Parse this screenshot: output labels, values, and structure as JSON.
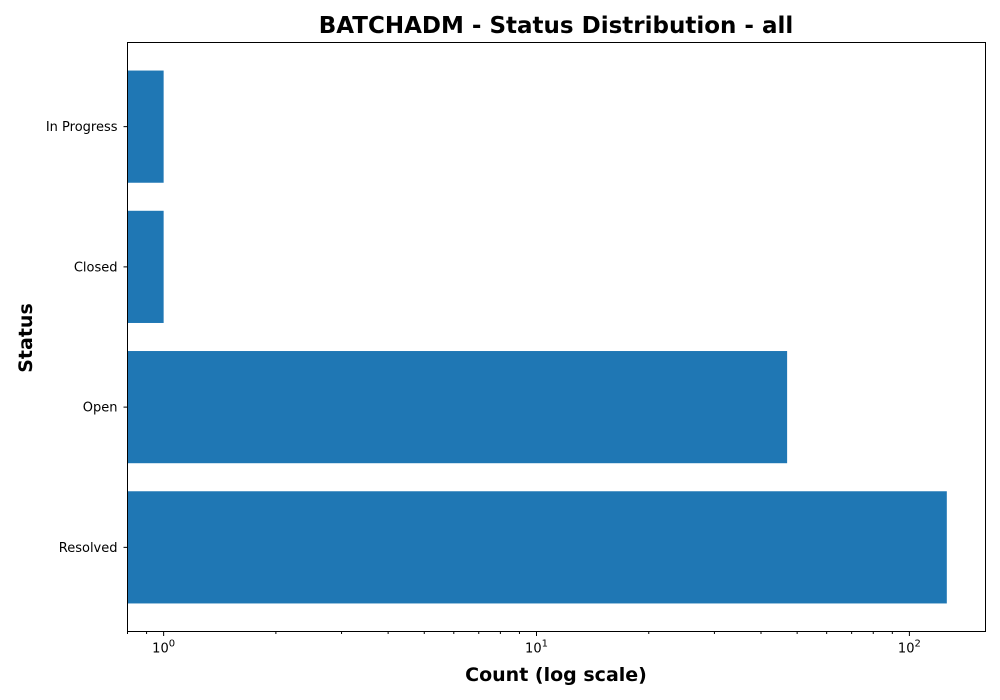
{
  "chart_data": {
    "type": "bar",
    "orientation": "horizontal",
    "title": "BATCHADM - Status Distribution - all",
    "xlabel": "Count (log scale)",
    "ylabel": "Status",
    "x_scale": "log",
    "xlim": [
      0.8,
      160
    ],
    "grid": false,
    "legend": "none",
    "categories": [
      "Resolved",
      "Open",
      "Closed",
      "In Progress"
    ],
    "values": [
      126,
      47,
      1,
      1
    ],
    "x_ticks": [
      {
        "base": "10",
        "exp": "0",
        "value": 1
      },
      {
        "base": "10",
        "exp": "1",
        "value": 10
      },
      {
        "base": "10",
        "exp": "2",
        "value": 100
      }
    ],
    "colors": {
      "bar": "#1f77b4"
    }
  }
}
